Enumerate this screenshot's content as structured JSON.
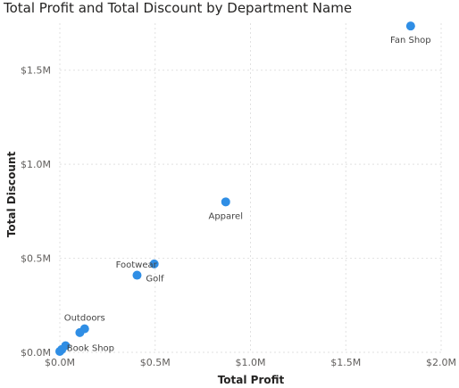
{
  "chart_data": {
    "type": "scatter",
    "title": "Total Profit and Total Discount by Department Name",
    "xlabel": "Total Profit",
    "ylabel": "Total Discount",
    "xlim": [
      0,
      2000000
    ],
    "ylim": [
      0,
      1750000
    ],
    "x_ticks": [
      {
        "value": 0,
        "label": "$0.0M"
      },
      {
        "value": 500000,
        "label": "$0.5M"
      },
      {
        "value": 1000000,
        "label": "$1.0M"
      },
      {
        "value": 1500000,
        "label": "$1.5M"
      },
      {
        "value": 2000000,
        "label": "$2.0M"
      }
    ],
    "y_ticks": [
      {
        "value": 0,
        "label": "$0.0M"
      },
      {
        "value": 500000,
        "label": "$0.5M"
      },
      {
        "value": 1000000,
        "label": "$1.0M"
      },
      {
        "value": 1500000,
        "label": "$1.5M"
      }
    ],
    "grid": true,
    "point_color": "#2f8ee5",
    "points": [
      {
        "label": "Fan Shop",
        "x": 1840000,
        "y": 1735000
      },
      {
        "label": "Apparel",
        "x": 870000,
        "y": 800000
      },
      {
        "label": "Footwear",
        "x": 495000,
        "y": 470000
      },
      {
        "label": "Golf",
        "x": 405000,
        "y": 410000
      },
      {
        "label": "Outdoors",
        "x": 130000,
        "y": 125000
      },
      {
        "label": "",
        "x": 105000,
        "y": 105000
      },
      {
        "label": "Book Shop",
        "x": 30000,
        "y": 35000
      },
      {
        "label": "",
        "x": 10000,
        "y": 15000
      },
      {
        "label": "",
        "x": 0,
        "y": 5000
      }
    ]
  }
}
